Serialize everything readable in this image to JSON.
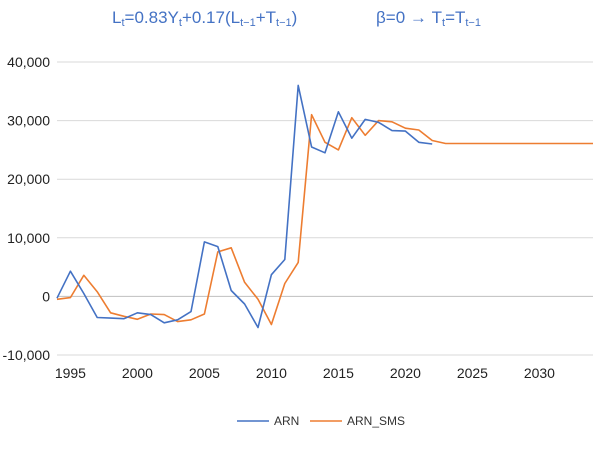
{
  "formula": {
    "left": {
      "L": "L",
      "t": "t",
      "eq": "=0.83Y",
      "t2": "t",
      "plus": "+0.17(L",
      "tm1a": "t−1",
      "plusT": "+T",
      "tm1b": "t−1",
      "close": ")"
    },
    "right": {
      "beta": "β=0 → T",
      "t": "t",
      "eq": "=T",
      "tm1": "t−1"
    }
  },
  "colors": {
    "ARN": "#4472c4",
    "ARN_SMS": "#ed7d31",
    "grid": "#d9d9d9",
    "zero_line": "#bfbfbf"
  },
  "chart_data": {
    "type": "line",
    "title": "",
    "xlabel": "",
    "ylabel": "",
    "xlim": [
      1994,
      2034
    ],
    "ylim": [
      -10000,
      40000
    ],
    "x_ticks": [
      1995,
      2000,
      2005,
      2010,
      2015,
      2020,
      2025,
      2030
    ],
    "x_tick_labels": [
      "1995",
      "2000",
      "2005",
      "2010",
      "2015",
      "2020",
      "2025",
      "2030"
    ],
    "y_ticks": [
      -10000,
      0,
      10000,
      20000,
      30000,
      40000
    ],
    "y_tick_labels": [
      "-10,000",
      "0",
      "10,000",
      "20,000",
      "30,000",
      "40,000"
    ],
    "grid": "horizontal",
    "legend_position": "bottom",
    "series": [
      {
        "name": "ARN",
        "x": [
          1994,
          1995,
          1996,
          1997,
          1998,
          1999,
          2000,
          2001,
          2002,
          2003,
          2004,
          2005,
          2006,
          2007,
          2008,
          2009,
          2010,
          2011,
          2012,
          2013,
          2014,
          2015,
          2016,
          2017,
          2018,
          2019,
          2020,
          2021,
          2022
        ],
        "y": [
          -300,
          4300,
          500,
          -3600,
          -3700,
          -3800,
          -2800,
          -3100,
          -4500,
          -4000,
          -2600,
          9300,
          8500,
          1000,
          -1300,
          -5300,
          3700,
          6300,
          36000,
          25500,
          24500,
          31500,
          27000,
          30200,
          29700,
          28300,
          28200,
          26300,
          26000
        ]
      },
      {
        "name": "ARN_SMS",
        "x": [
          1994,
          1995,
          1996,
          1997,
          1998,
          1999,
          2000,
          2001,
          2002,
          2003,
          2004,
          2005,
          2006,
          2007,
          2008,
          2009,
          2010,
          2011,
          2012,
          2013,
          2014,
          2015,
          2016,
          2017,
          2018,
          2019,
          2020,
          2021,
          2022,
          2023,
          2024,
          2025,
          2026,
          2027,
          2028,
          2029,
          2030,
          2031,
          2032,
          2033,
          2034
        ],
        "y": [
          -500,
          -200,
          3600,
          800,
          -2800,
          -3400,
          -3900,
          -3000,
          -3100,
          -4300,
          -4000,
          -3000,
          7600,
          8300,
          2400,
          -500,
          -4800,
          2200,
          5800,
          31000,
          26300,
          25000,
          30500,
          27500,
          30000,
          29800,
          28700,
          28400,
          26600,
          26100,
          26100,
          26100,
          26100,
          26100,
          26100,
          26100,
          26100,
          26100,
          26100,
          26100,
          26100
        ]
      }
    ]
  }
}
